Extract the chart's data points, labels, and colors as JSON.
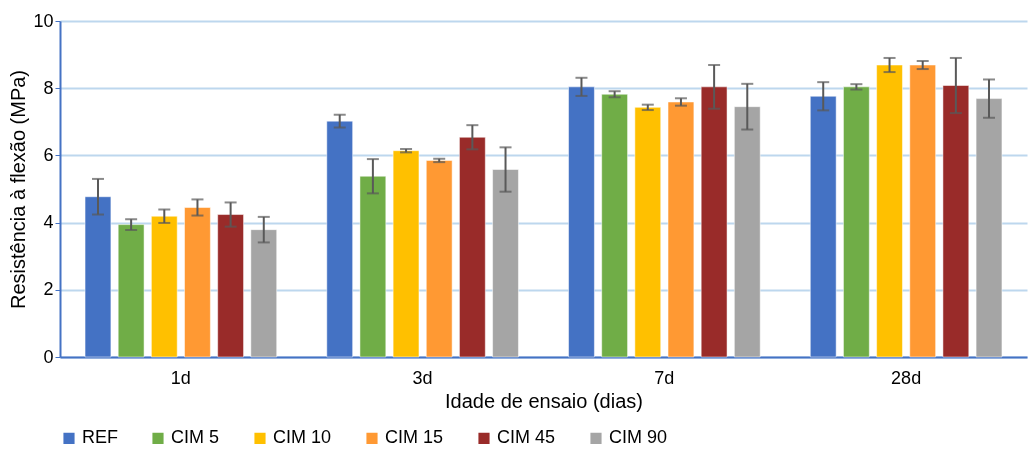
{
  "chart_data": {
    "type": "bar",
    "xlabel": "Idade de ensaio (dias)",
    "ylabel": "Resistência à flexão (MPa)",
    "categories": [
      "1d",
      "3d",
      "7d",
      "28d"
    ],
    "ylim": [
      0,
      10
    ],
    "yticks": [
      0,
      2,
      4,
      6,
      8,
      10
    ],
    "grid": "y",
    "legend": "bottom",
    "series": [
      {
        "name": "REF",
        "color": "#4472c4",
        "values": [
          4.77,
          7.02,
          8.04,
          7.76
        ],
        "errors": [
          0.53,
          0.19,
          0.27,
          0.42
        ]
      },
      {
        "name": "CIM 5",
        "color": "#70ad47",
        "values": [
          3.94,
          5.38,
          7.82,
          8.04
        ],
        "errors": [
          0.16,
          0.51,
          0.09,
          0.08
        ]
      },
      {
        "name": "CIM 10",
        "color": "#ffc000",
        "values": [
          4.19,
          6.14,
          7.43,
          8.69
        ],
        "errors": [
          0.2,
          0.05,
          0.08,
          0.21
        ]
      },
      {
        "name": "CIM 15",
        "color": "#ff9933",
        "values": [
          4.45,
          5.85,
          7.59,
          8.69
        ],
        "errors": [
          0.24,
          0.05,
          0.11,
          0.12
        ]
      },
      {
        "name": "CIM 45",
        "color": "#992b29",
        "values": [
          4.24,
          6.54,
          8.04,
          8.08
        ],
        "errors": [
          0.36,
          0.36,
          0.65,
          0.82
        ]
      },
      {
        "name": "CIM 90",
        "color": "#a5a5a5",
        "values": [
          3.79,
          5.58,
          7.45,
          7.69
        ],
        "errors": [
          0.38,
          0.66,
          0.68,
          0.57
        ]
      }
    ]
  }
}
